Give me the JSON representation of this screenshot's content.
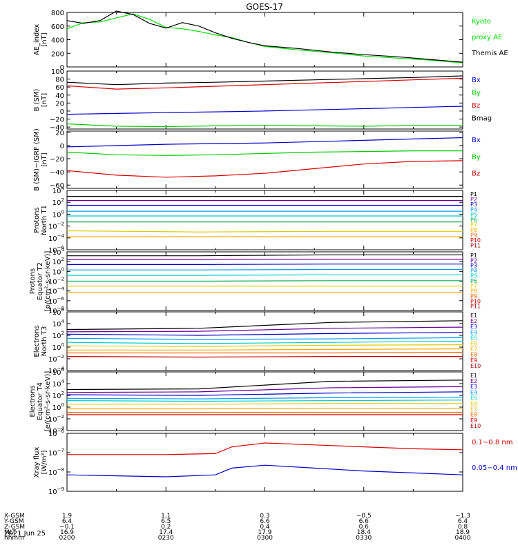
{
  "title": "GOES-17",
  "date_label": "2021 Jun 25",
  "panels": [
    {
      "ylabel_lines": [
        "AE_index",
        "[nT]"
      ],
      "yticks": [
        "800",
        "600",
        "400",
        "200",
        "0"
      ],
      "legend": [
        {
          "text": "Kyoto",
          "color": "#00dd00"
        },
        {
          "text": "proxy AE",
          "color": "#00dd00"
        },
        {
          "text": "Themis AE",
          "color": "#000000"
        }
      ]
    },
    {
      "ylabel_lines": [
        "B (SM)",
        "[nT]"
      ],
      "yticks": [
        "100",
        "80",
        "60",
        "40",
        "20",
        "0",
        "−20",
        "−40"
      ],
      "legend": [
        {
          "text": "Bx",
          "color": "#0000cc"
        },
        {
          "text": "By",
          "color": "#00cc00"
        },
        {
          "text": "Bz",
          "color": "#dd0000"
        },
        {
          "text": "Bmag",
          "color": "#000000"
        }
      ]
    },
    {
      "ylabel_lines": [
        "B (SM)−IGRF (SM)",
        "[nT]"
      ],
      "yticks": [
        "20",
        "0",
        "−20",
        "−40",
        "−60"
      ],
      "legend": [
        {
          "text": "Bx",
          "color": "#0000cc"
        },
        {
          "text": "By",
          "color": "#00cc00"
        },
        {
          "text": "Bz",
          "color": "#dd0000"
        }
      ]
    },
    {
      "ylabel_lines": [
        "Protons",
        "North T1"
      ],
      "ytick_exponents": [
        "4",
        "2",
        "0",
        "−2",
        "−4",
        "−6"
      ],
      "legend": [
        {
          "text": "P1",
          "color": "#000000"
        },
        {
          "text": "P2",
          "color": "#660099"
        },
        {
          "text": "P3",
          "color": "#0000cc"
        },
        {
          "text": "P4",
          "color": "#0099ff"
        },
        {
          "text": "P5",
          "color": "#00cccc"
        },
        {
          "text": "P6",
          "color": "#00aa55"
        },
        {
          "text": "P7",
          "color": "#ddcc00"
        },
        {
          "text": "P8",
          "color": "#ffaa00"
        },
        {
          "text": "P9",
          "color": "#ff6600"
        },
        {
          "text": "P10",
          "color": "#cc0000"
        },
        {
          "text": "P11",
          "color": "#990000"
        }
      ]
    },
    {
      "ylabel_lines": [
        "Protons",
        "Equator T2",
        "[p/(cm²-s-sr-keV)]"
      ],
      "ytick_exponents": [
        "4",
        "2",
        "0",
        "−2",
        "−4",
        "−6",
        "−8"
      ],
      "legend": [
        {
          "text": "P1",
          "color": "#000000"
        },
        {
          "text": "P2",
          "color": "#660099"
        },
        {
          "text": "P3",
          "color": "#0000cc"
        },
        {
          "text": "P4",
          "color": "#0099ff"
        },
        {
          "text": "P5",
          "color": "#00cccc"
        },
        {
          "text": "P6",
          "color": "#00aa55"
        },
        {
          "text": "P7",
          "color": "#ddcc00"
        },
        {
          "text": "P8",
          "color": "#ffaa00"
        },
        {
          "text": "P9",
          "color": "#ff6600"
        },
        {
          "text": "P10",
          "color": "#cc0000"
        },
        {
          "text": "P11",
          "color": "#990000"
        }
      ]
    },
    {
      "ylabel_lines": [
        "Electrons",
        "North T3"
      ],
      "ytick_exponents": [
        "6",
        "4",
        "2",
        "0",
        "−2",
        "−4"
      ],
      "legend": [
        {
          "text": "E1",
          "color": "#000000"
        },
        {
          "text": "E2",
          "color": "#660099"
        },
        {
          "text": "E3",
          "color": "#0000cc"
        },
        {
          "text": "E4",
          "color": "#0099ff"
        },
        {
          "text": "E5",
          "color": "#00cccc"
        },
        {
          "text": "E6",
          "color": "#ddcc00"
        },
        {
          "text": "E7",
          "color": "#ffaa00"
        },
        {
          "text": "E8",
          "color": "#ff6600"
        },
        {
          "text": "E9",
          "color": "#cc0000"
        },
        {
          "text": "E10",
          "color": "#990000"
        }
      ]
    },
    {
      "ylabel_lines": [
        "Electrons",
        "Equator T4",
        "[e/(cm²-s-sr-keV)]"
      ],
      "ytick_exponents": [
        "6",
        "4",
        "2",
        "0",
        "−2",
        "−4"
      ],
      "legend": [
        {
          "text": "E1",
          "color": "#000000"
        },
        {
          "text": "E2",
          "color": "#660099"
        },
        {
          "text": "E3",
          "color": "#0000cc"
        },
        {
          "text": "E4",
          "color": "#0099ff"
        },
        {
          "text": "E5",
          "color": "#00cccc"
        },
        {
          "text": "E6",
          "color": "#ddcc00"
        },
        {
          "text": "E7",
          "color": "#ffaa00"
        },
        {
          "text": "E8",
          "color": "#ff6600"
        },
        {
          "text": "E9",
          "color": "#cc0000"
        },
        {
          "text": "E10",
          "color": "#990000"
        }
      ]
    },
    {
      "ylabel_lines": [
        "Xray flux",
        "[W/m²]"
      ],
      "ytick_exponents": [
        "−6",
        "−7",
        "−8",
        "−9"
      ],
      "legend": [
        {
          "text": "0.1−0.8 nm",
          "color": "#dd0000"
        },
        {
          "text": "0.05−0.4 nm",
          "color": "#0000cc"
        }
      ]
    }
  ],
  "xaxis": {
    "row_labels": [
      "X-GSM",
      "Y-GSM",
      "Z-GSM",
      "MLT",
      "hhmm"
    ],
    "columns": [
      {
        "values": [
          "1.9",
          "6.4",
          "−0.1",
          "16.9",
          "0200"
        ]
      },
      {
        "values": [
          "1.1",
          "6.5",
          "0.2",
          "17.4",
          "0230"
        ]
      },
      {
        "values": [
          "0.3",
          "6.6",
          "0.4",
          "17.9",
          "0300"
        ]
      },
      {
        "values": [
          "−0.5",
          "6.6",
          "0.6",
          "18.4",
          "0330"
        ]
      },
      {
        "values": [
          "−1.3",
          "6.4",
          "0.8",
          "18.9",
          "0400"
        ]
      }
    ]
  },
  "chart_data": [
    {
      "type": "line",
      "ylabel": "AE_index [nT]",
      "ylim": [
        0,
        800
      ],
      "x": [
        "0200",
        "0205",
        "0210",
        "0215",
        "0220",
        "0225",
        "0230",
        "0235",
        "0240",
        "0245",
        "0250",
        "0255",
        "0300",
        "0310",
        "0320",
        "0330",
        "0340",
        "0350",
        "0400"
      ],
      "series": [
        {
          "name": "Kyoto proxy AE",
          "color": "#00dd00",
          "values": [
            560,
            650,
            660,
            720,
            780,
            700,
            580,
            560,
            520,
            470,
            430,
            360,
            300,
            250,
            210,
            160,
            130,
            100,
            60
          ]
        },
        {
          "name": "Themis AE",
          "color": "#000000",
          "values": [
            680,
            640,
            680,
            820,
            770,
            640,
            570,
            650,
            600,
            500,
            420,
            360,
            310,
            270,
            220,
            180,
            150,
            110,
            70
          ]
        }
      ]
    },
    {
      "type": "line",
      "ylabel": "B (SM) [nT]",
      "ylim": [
        -45,
        100
      ],
      "x": [
        "0200",
        "0215",
        "0230",
        "0245",
        "0300",
        "0315",
        "0330",
        "0345",
        "0400"
      ],
      "series": [
        {
          "name": "Bx",
          "color": "#0000cc",
          "values": [
            -8,
            -6,
            -4,
            -2,
            0,
            3,
            6,
            9,
            12
          ]
        },
        {
          "name": "By",
          "color": "#00cc00",
          "values": [
            -32,
            -38,
            -39,
            -37,
            -36,
            -37,
            -38,
            -36,
            -36
          ]
        },
        {
          "name": "Bz",
          "color": "#dd0000",
          "values": [
            63,
            55,
            58,
            62,
            66,
            70,
            74,
            78,
            82
          ]
        },
        {
          "name": "Bmag",
          "color": "#000000",
          "values": [
            72,
            66,
            70,
            72,
            75,
            78,
            81,
            84,
            88
          ]
        }
      ]
    },
    {
      "type": "line",
      "ylabel": "B (SM)-IGRF (SM) [nT]",
      "ylim": [
        -65,
        22
      ],
      "x": [
        "0200",
        "0215",
        "0230",
        "0245",
        "0300",
        "0315",
        "0330",
        "0345",
        "0400"
      ],
      "series": [
        {
          "name": "Bx",
          "color": "#0000cc",
          "values": [
            -2,
            0,
            2,
            3,
            4,
            6,
            8,
            10,
            12
          ]
        },
        {
          "name": "By",
          "color": "#00cc00",
          "values": [
            -10,
            -14,
            -15,
            -14,
            -12,
            -10,
            -9,
            -8,
            -8
          ]
        },
        {
          "name": "Bz",
          "color": "#dd0000",
          "values": [
            -38,
            -45,
            -48,
            -46,
            -42,
            -35,
            -28,
            -24,
            -23
          ]
        }
      ]
    },
    {
      "type": "line",
      "ylabel": "Protons North T1 (log10)",
      "ylim": [
        -6,
        4
      ],
      "series": [
        {
          "name": "P1",
          "color": "#000000",
          "values": [
            3.0,
            3.0,
            3.0,
            3.0
          ]
        },
        {
          "name": "P2",
          "color": "#660099",
          "values": [
            2.3,
            2.3,
            2.3,
            2.3
          ]
        },
        {
          "name": "P3",
          "color": "#0000cc",
          "values": [
            1.5,
            1.5,
            1.5,
            1.5
          ]
        },
        {
          "name": "P4",
          "color": "#0099ff",
          "values": [
            0.5,
            0.5,
            0.5,
            0.5
          ]
        },
        {
          "name": "P5",
          "color": "#00cccc",
          "values": [
            -0.3,
            -0.3,
            -0.3,
            -0.3
          ]
        },
        {
          "name": "P6",
          "color": "#00aa55",
          "values": [
            -1.3,
            -1.3,
            -1.3,
            -1.3
          ]
        },
        {
          "name": "P7",
          "color": "#ddcc00",
          "values": [
            -2.8,
            -3.0,
            -2.9,
            -2.9
          ]
        },
        {
          "name": "P8",
          "color": "#ffaa00",
          "values": [
            -3.8,
            -3.8,
            -3.8,
            -3.8
          ]
        }
      ]
    },
    {
      "type": "line",
      "ylabel": "Protons Equator T2 [p/(cm²-s-sr-keV)] (log10)",
      "ylim": [
        -8,
        4
      ],
      "series": [
        {
          "name": "P1",
          "color": "#000000",
          "values": [
            3.2,
            3.2,
            3.4,
            3.4
          ]
        },
        {
          "name": "P2",
          "color": "#660099",
          "values": [
            2.4,
            2.4,
            2.5,
            2.5
          ]
        },
        {
          "name": "P3",
          "color": "#0000cc",
          "values": [
            1.4,
            1.4,
            1.5,
            1.5
          ]
        },
        {
          "name": "P4",
          "color": "#0099ff",
          "values": [
            0.3,
            0.3,
            0.4,
            0.4
          ]
        },
        {
          "name": "P5",
          "color": "#00cccc",
          "values": [
            -0.8,
            -0.8,
            -0.7,
            -0.7
          ]
        },
        {
          "name": "P6",
          "color": "#00aa55",
          "values": [
            -2.0,
            -2.0,
            -1.9,
            -1.9
          ]
        },
        {
          "name": "P7",
          "color": "#ddcc00",
          "values": [
            -3.0,
            -3.0,
            -3.0,
            -3.0
          ]
        },
        {
          "name": "P8",
          "color": "#ffaa00",
          "values": [
            -4.3,
            -4.3,
            -4.3,
            -4.3
          ]
        }
      ]
    },
    {
      "type": "line",
      "ylabel": "Electrons North T3 (log10)",
      "ylim": [
        -4,
        6
      ],
      "series": [
        {
          "name": "E1",
          "color": "#000000",
          "values": [
            3.0,
            3.2,
            4.2,
            4.5
          ]
        },
        {
          "name": "E2",
          "color": "#660099",
          "values": [
            2.6,
            2.7,
            3.2,
            3.4
          ]
        },
        {
          "name": "E3",
          "color": "#0000cc",
          "values": [
            2.2,
            2.0,
            2.3,
            2.5
          ]
        },
        {
          "name": "E4",
          "color": "#0099ff",
          "values": [
            1.5,
            1.3,
            1.4,
            1.6
          ]
        },
        {
          "name": "E5",
          "color": "#00cccc",
          "values": [
            0.8,
            0.6,
            0.8,
            1.0
          ]
        },
        {
          "name": "E6",
          "color": "#ddcc00",
          "values": [
            0.2,
            0.1,
            0.3,
            0.4
          ]
        },
        {
          "name": "E7",
          "color": "#ffaa00",
          "values": [
            -0.5,
            -0.5,
            -0.4,
            -0.3
          ]
        },
        {
          "name": "E8",
          "color": "#ff6600",
          "values": [
            -1.0,
            -1.0,
            -1.0,
            -0.9
          ]
        },
        {
          "name": "E9",
          "color": "#cc0000",
          "values": [
            -1.6,
            -1.7,
            -1.6,
            -1.6
          ]
        }
      ]
    },
    {
      "type": "line",
      "ylabel": "Electrons Equator T4 [e/(cm²-s-sr-keV)] (log10)",
      "ylim": [
        -4,
        6
      ],
      "series": [
        {
          "name": "E1",
          "color": "#000000",
          "values": [
            3.0,
            3.1,
            4.4,
            4.6
          ]
        },
        {
          "name": "E2",
          "color": "#660099",
          "values": [
            2.5,
            2.6,
            3.3,
            3.5
          ]
        },
        {
          "name": "E3",
          "color": "#0000cc",
          "values": [
            2.1,
            2.0,
            2.4,
            2.6
          ]
        },
        {
          "name": "E4",
          "color": "#0099ff",
          "values": [
            1.5,
            1.4,
            1.6,
            1.7
          ]
        },
        {
          "name": "E5",
          "color": "#00cccc",
          "values": [
            1.1,
            1.0,
            1.1,
            1.2
          ]
        },
        {
          "name": "E6",
          "color": "#ddcc00",
          "values": [
            0.5,
            0.5,
            0.6,
            0.6
          ]
        },
        {
          "name": "E7",
          "color": "#ffaa00",
          "values": [
            -0.3,
            -0.3,
            -0.2,
            -0.2
          ]
        },
        {
          "name": "E8",
          "color": "#ff6600",
          "values": [
            -0.9,
            -0.9,
            -0.9,
            -0.9
          ]
        },
        {
          "name": "E9",
          "color": "#cc0000",
          "values": [
            -1.3,
            -1.3,
            -1.3,
            -1.3
          ]
        }
      ]
    },
    {
      "type": "line",
      "ylabel": "Xray flux [W/m²] (log10)",
      "ylim": [
        -9,
        -6
      ],
      "x": [
        "0200",
        "0215",
        "0230",
        "0245",
        "0250",
        "0300",
        "0315",
        "0330",
        "0345",
        "0400"
      ],
      "series": [
        {
          "name": "0.1−0.8 nm",
          "color": "#dd0000",
          "values": [
            -7.1,
            -7.1,
            -7.1,
            -7.05,
            -6.7,
            -6.5,
            -6.6,
            -6.7,
            -6.8,
            -6.85
          ]
        },
        {
          "name": "0.05−0.4 nm",
          "color": "#0000cc",
          "values": [
            -8.15,
            -8.2,
            -8.25,
            -8.15,
            -7.8,
            -7.65,
            -7.8,
            -7.95,
            -8.05,
            -8.15
          ]
        }
      ]
    }
  ]
}
